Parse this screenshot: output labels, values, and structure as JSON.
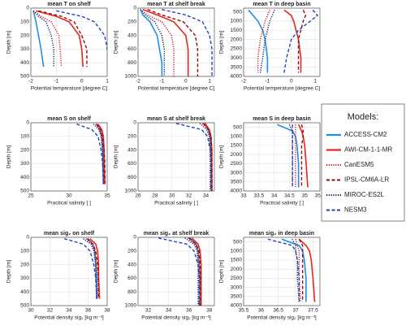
{
  "legend": {
    "title": "Models:",
    "entries": [
      {
        "name": "ACCESS-CM2",
        "color": "#1f8fe6",
        "style": "solid"
      },
      {
        "name": "AWI-CM-1-1-MR",
        "color": "#e8261e",
        "style": "solid"
      },
      {
        "name": "CanESM5",
        "color": "#d8141b",
        "style": "dotted"
      },
      {
        "name": "IPSL-CM6A-LR",
        "color": "#8b0f12",
        "style": "dashed"
      },
      {
        "name": "MIROC-ES2L",
        "color": "#101a66",
        "style": "dotted"
      },
      {
        "name": "NESM3",
        "color": "#2244bb",
        "style": "dashed"
      }
    ]
  },
  "chart_data": [
    {
      "type": "line",
      "title": "mean T on shelf",
      "xlabel": "Potential temperature [degree C]",
      "ylabel": "Depth [m]",
      "grid": true,
      "xlim": [
        -2,
        1
      ],
      "xticks": [
        -2,
        -1,
        0,
        1
      ],
      "ylim": [
        0,
        500
      ],
      "yticks": [
        0,
        100,
        200,
        300,
        400,
        500
      ],
      "y": [
        20,
        60,
        100,
        200,
        300,
        430
      ],
      "series": [
        {
          "values": [
            -1.9,
            -1.85,
            -1.8,
            -1.7,
            -1.6,
            -1.5
          ]
        },
        {
          "values": [
            -1.8,
            -1.0,
            -0.5,
            -0.1,
            0.0,
            0.05
          ]
        },
        {
          "values": [
            -1.9,
            -1.6,
            -1.2,
            -0.9,
            -0.85,
            -0.8
          ]
        },
        {
          "values": [
            -1.7,
            -0.8,
            -0.3,
            0.0,
            0.2,
            0.2
          ]
        },
        {
          "values": [
            -1.9,
            -1.7,
            -1.4,
            -1.2,
            -1.1,
            -1.1
          ]
        },
        {
          "values": [
            -1.0,
            0.0,
            0.5,
            0.9,
            1.0,
            1.1
          ]
        }
      ]
    },
    {
      "type": "line",
      "title": "mean T at shelf break",
      "xlabel": "Potential temperature [degree C]",
      "ylabel": "Depth [m]",
      "grid": true,
      "xlim": [
        -2,
        1.2
      ],
      "xticks": [
        -2,
        -1,
        0,
        1
      ],
      "ylim": [
        0,
        1000
      ],
      "yticks": [
        0,
        200,
        400,
        600,
        800,
        1000
      ],
      "y": [
        20,
        100,
        200,
        400,
        600,
        800,
        1000
      ],
      "series": [
        {
          "values": [
            -1.9,
            -1.8,
            -1.5,
            -1.2,
            -1.1,
            -1.0,
            -1.0
          ]
        },
        {
          "values": [
            -1.8,
            -1.2,
            -0.5,
            0.0,
            0.1,
            0.1,
            0.1
          ]
        },
        {
          "values": [
            -1.9,
            -1.6,
            -1.0,
            -0.6,
            -0.5,
            -0.5,
            -0.5
          ]
        },
        {
          "values": [
            -1.6,
            -1.0,
            -0.1,
            0.4,
            0.5,
            0.5,
            0.5
          ]
        },
        {
          "values": [
            -1.9,
            -1.7,
            -1.3,
            -1.0,
            -0.9,
            -0.9,
            -0.9
          ]
        },
        {
          "values": [
            -1.0,
            0.0,
            0.7,
            1.0,
            1.1,
            1.1,
            1.1
          ]
        }
      ]
    },
    {
      "type": "line",
      "title": "mean T in deep basin",
      "xlabel": "Potential temperature [degree C]",
      "ylabel": "Depth [m]",
      "grid": true,
      "xlim": [
        -2,
        1.2
      ],
      "xticks": [
        -2,
        -1,
        0,
        1
      ],
      "ylim": [
        300,
        4000
      ],
      "yticks": [
        500,
        1000,
        1500,
        2000,
        2500,
        3000,
        3500,
        4000
      ],
      "y": [
        400,
        700,
        1000,
        1500,
        2000,
        3000,
        3800
      ],
      "series": [
        {
          "values": [
            -1.8,
            -1.6,
            -1.4,
            -1.2,
            -1.1,
            -1.0,
            -1.0
          ]
        },
        {
          "values": [
            -0.3,
            0.0,
            0.1,
            0.2,
            0.3,
            0.4,
            0.4
          ]
        },
        {
          "values": [
            -0.9,
            -1.0,
            -1.1,
            -1.2,
            -1.3,
            -1.4,
            -1.4
          ]
        },
        {
          "values": [
            0.5,
            0.6,
            0.5,
            0.4,
            0.3,
            0.3,
            0.3
          ]
        },
        {
          "values": [
            -0.7,
            -0.8,
            -0.9,
            -1.0,
            -1.1,
            -1.2,
            -1.3
          ]
        },
        {
          "values": [
            0.9,
            1.1,
            0.8,
            0.3,
            0.0,
            -0.2,
            -0.3
          ]
        }
      ]
    },
    {
      "type": "line",
      "title": "mean S on shelf",
      "xlabel": "Practical salinity [ ]",
      "ylabel": "Depth [m]",
      "grid": true,
      "xlim": [
        25,
        35
      ],
      "xticks": [
        25,
        30,
        35
      ],
      "ylim": [
        0,
        500
      ],
      "yticks": [
        0,
        100,
        200,
        300,
        400,
        500
      ],
      "y": [
        10,
        50,
        100,
        200,
        300,
        450
      ],
      "series": [
        {
          "values": [
            33.7,
            34.1,
            34.3,
            34.4,
            34.5,
            34.5
          ]
        },
        {
          "values": [
            33.8,
            34.3,
            34.5,
            34.6,
            34.6,
            34.7
          ]
        },
        {
          "values": [
            33.5,
            34.0,
            34.3,
            34.5,
            34.6,
            34.6
          ]
        },
        {
          "values": [
            33.6,
            34.1,
            34.4,
            34.6,
            34.7,
            34.7
          ]
        },
        {
          "values": [
            33.2,
            33.9,
            34.2,
            34.4,
            34.4,
            34.5
          ]
        },
        {
          "values": [
            31.0,
            33.0,
            33.8,
            34.2,
            34.4,
            34.5
          ]
        }
      ]
    },
    {
      "type": "line",
      "title": "mean S at shelf break",
      "xlabel": "Practical salinity [ ]",
      "ylabel": "Depth [m]",
      "grid": true,
      "xlim": [
        26,
        35
      ],
      "xticks": [
        26,
        28,
        30,
        32,
        34
      ],
      "ylim": [
        0,
        1000
      ],
      "yticks": [
        0,
        200,
        400,
        600,
        800,
        1000
      ],
      "y": [
        10,
        100,
        200,
        400,
        600,
        1000
      ],
      "series": [
        {
          "values": [
            33.8,
            34.3,
            34.5,
            34.6,
            34.7,
            34.7
          ]
        },
        {
          "values": [
            33.9,
            34.4,
            34.6,
            34.7,
            34.7,
            34.7
          ]
        },
        {
          "values": [
            33.6,
            34.3,
            34.5,
            34.6,
            34.6,
            34.6
          ]
        },
        {
          "values": [
            33.7,
            34.3,
            34.6,
            34.7,
            34.7,
            34.7
          ]
        },
        {
          "values": [
            33.3,
            34.1,
            34.4,
            34.5,
            34.5,
            34.5
          ]
        },
        {
          "values": [
            30.5,
            33.5,
            34.2,
            34.5,
            34.6,
            34.6
          ]
        }
      ]
    },
    {
      "type": "line",
      "title": "mean S in deep basin",
      "xlabel": "Practical salinity [ ]",
      "ylabel": "Depth [m]",
      "grid": true,
      "xlim": [
        33,
        35.5
      ],
      "xticks": [
        33,
        33.5,
        34,
        34.5,
        35,
        35.5
      ],
      "ylim": [
        250,
        4000
      ],
      "yticks": [
        500,
        1000,
        1500,
        2000,
        2500,
        3000,
        3500,
        4000
      ],
      "y": [
        350,
        700,
        1000,
        1500,
        2500,
        3800
      ],
      "series": [
        {
          "values": [
            34.1,
            34.6,
            34.7,
            34.75,
            34.8,
            34.8
          ]
        },
        {
          "values": [
            34.8,
            34.9,
            34.95,
            35.0,
            35.05,
            35.1
          ]
        },
        {
          "values": [
            34.7,
            34.7,
            34.7,
            34.7,
            34.7,
            34.7
          ]
        },
        {
          "values": [
            34.9,
            34.95,
            34.95,
            34.9,
            34.9,
            34.9
          ]
        },
        {
          "values": [
            34.5,
            34.6,
            34.6,
            34.6,
            34.6,
            34.6
          ]
        },
        {
          "values": [
            34.6,
            34.6,
            34.6,
            34.6,
            34.6,
            34.6
          ]
        }
      ]
    },
    {
      "type": "line",
      "title": "mean sig₂ on shelf",
      "xlabel": "Potential density sig₂ [kg m⁻³]",
      "ylabel": "Depth [m]",
      "grid": true,
      "xlim": [
        30,
        38
      ],
      "xticks": [
        30,
        32,
        34,
        36,
        38
      ],
      "ylim": [
        0,
        500
      ],
      "yticks": [
        0,
        100,
        200,
        300,
        400,
        500
      ],
      "y": [
        10,
        50,
        100,
        200,
        300,
        450
      ],
      "series": [
        {
          "values": [
            36.0,
            36.5,
            36.7,
            36.8,
            36.9,
            36.9
          ]
        },
        {
          "values": [
            36.2,
            36.8,
            37.0,
            37.1,
            37.1,
            37.2
          ]
        },
        {
          "values": [
            35.8,
            36.4,
            36.7,
            36.9,
            37.0,
            37.0
          ]
        },
        {
          "values": [
            35.9,
            36.5,
            36.8,
            37.0,
            37.1,
            37.1
          ]
        },
        {
          "values": [
            35.5,
            36.3,
            36.6,
            36.8,
            36.8,
            36.9
          ]
        },
        {
          "values": [
            33.5,
            35.5,
            36.2,
            36.6,
            36.8,
            36.9
          ]
        }
      ]
    },
    {
      "type": "line",
      "title": "mean sig₂ at shelf break",
      "xlabel": "Potential density sig₂ [kg m⁻³]",
      "ylabel": "Depth [m]",
      "grid": true,
      "xlim": [
        31,
        38.5
      ],
      "xticks": [
        32,
        34,
        36,
        38
      ],
      "ylim": [
        0,
        1000
      ],
      "yticks": [
        0,
        200,
        400,
        600,
        800,
        1000
      ],
      "y": [
        10,
        100,
        200,
        400,
        600,
        1000
      ],
      "series": [
        {
          "values": [
            36.1,
            36.7,
            36.9,
            37.0,
            37.1,
            37.1
          ]
        },
        {
          "values": [
            36.3,
            36.9,
            37.1,
            37.2,
            37.2,
            37.2
          ]
        },
        {
          "values": [
            35.9,
            36.6,
            36.9,
            37.0,
            37.0,
            37.0
          ]
        },
        {
          "values": [
            36.0,
            36.7,
            37.0,
            37.1,
            37.1,
            37.1
          ]
        },
        {
          "values": [
            35.6,
            36.5,
            36.8,
            36.9,
            36.9,
            36.9
          ]
        },
        {
          "values": [
            33.0,
            35.8,
            36.5,
            36.9,
            37.0,
            37.0
          ]
        }
      ]
    },
    {
      "type": "line",
      "title": "mean sig₂ in deep basin",
      "xlabel": "Potential density sig₂ [kg m⁻³]",
      "ylabel": "Depth [m]",
      "grid": true,
      "xlim": [
        35.5,
        37.7
      ],
      "xticks": [
        35.5,
        36,
        36.5,
        37,
        37.5
      ],
      "ylim": [
        250,
        4000
      ],
      "yticks": [
        500,
        1000,
        1500,
        2000,
        2500,
        3000,
        3500,
        4000
      ],
      "y": [
        350,
        700,
        1000,
        1500,
        2500,
        3800
      ],
      "series": [
        {
          "values": [
            36.6,
            37.1,
            37.2,
            37.25,
            37.3,
            37.3
          ]
        },
        {
          "values": [
            37.1,
            37.3,
            37.4,
            37.45,
            37.5,
            37.55
          ]
        },
        {
          "values": [
            37.0,
            37.05,
            37.1,
            37.1,
            37.1,
            37.15
          ]
        },
        {
          "values": [
            37.1,
            37.2,
            37.2,
            37.2,
            37.2,
            37.2
          ]
        },
        {
          "values": [
            36.9,
            37.0,
            37.0,
            37.05,
            37.05,
            37.1
          ]
        },
        {
          "values": [
            36.2,
            36.9,
            37.0,
            37.05,
            37.1,
            37.1
          ]
        }
      ]
    }
  ]
}
